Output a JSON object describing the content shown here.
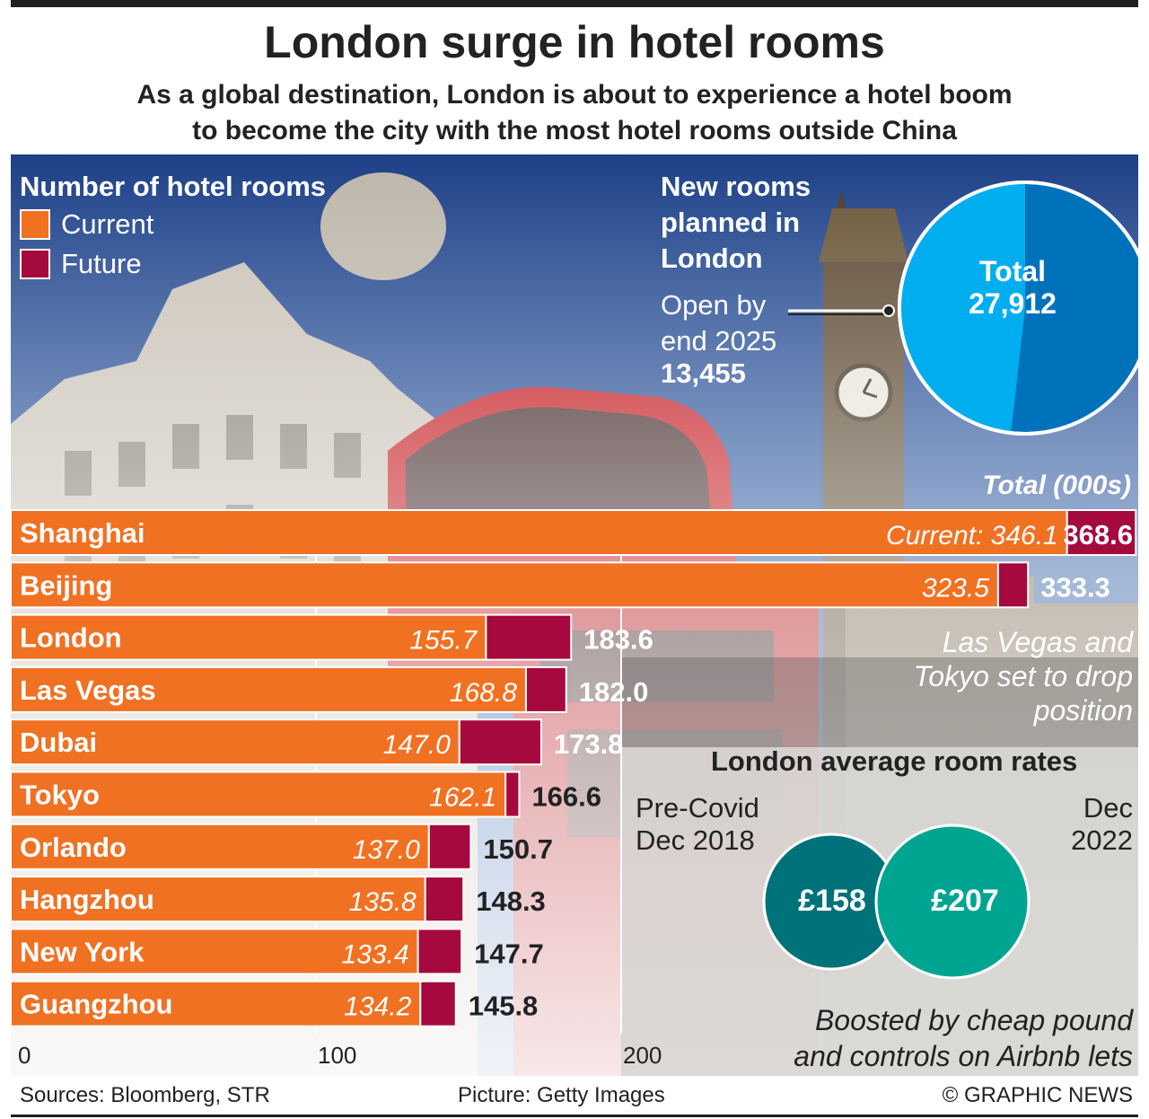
{
  "title": "London surge in hotel rooms",
  "subtitle_line1": "As a global destination, London is about to experience a hotel boom",
  "subtitle_line2": "to become the city with the most hotel rooms outside China",
  "legend": {
    "title": "Number of hotel rooms",
    "current": "Current",
    "future": "Future",
    "current_color": "#f07122",
    "future_color": "#a6093d"
  },
  "new_rooms": {
    "title_line1": "New rooms",
    "title_line2": "planned in",
    "title_line3": "London",
    "open_line1": "Open by",
    "open_line2": "end 2025",
    "open_value": "13,455",
    "total_label": "Total",
    "total_value": "27,912",
    "pie_fraction_open": 0.482
  },
  "chart_data": {
    "type": "bar",
    "orientation": "horizontal",
    "stacked": true,
    "header": "Total (000s)",
    "categories": [
      "Shanghai",
      "Beijing",
      "London",
      "Las Vegas",
      "Dubai",
      "Tokyo",
      "Orlando",
      "Hangzhou",
      "New York",
      "Guangzhou"
    ],
    "series": [
      {
        "name": "Current",
        "values": [
          346.1,
          323.5,
          155.7,
          168.8,
          147.0,
          162.1,
          137.0,
          135.8,
          133.4,
          134.2
        ]
      },
      {
        "name": "Future",
        "values": [
          22.5,
          9.8,
          27.9,
          13.2,
          26.8,
          4.5,
          13.7,
          12.5,
          14.3,
          11.6
        ]
      }
    ],
    "current_labels": [
      "Current: 346.1",
      "323.5",
      "155.7",
      "168.8",
      "147.0",
      "162.1",
      "137.0",
      "135.8",
      "133.4",
      "134.2"
    ],
    "total_labels": [
      "368.6",
      "333.3",
      "183.6",
      "182.0",
      "173.8",
      "166.6",
      "150.7",
      "148.3",
      "147.7",
      "145.8"
    ],
    "xticks": [
      "0",
      "100",
      "200"
    ],
    "xlim": [
      0,
      368.6
    ]
  },
  "note_line1": "Las Vegas and",
  "note_line2": "Tokyo set to drop",
  "note_line3": "position",
  "rates": {
    "title": "London average room rates",
    "pre_line1": "Pre-Covid",
    "pre_line2": "Dec 2018",
    "pre_value": "£158",
    "now_line1": "Dec",
    "now_line2": "2022",
    "now_value": "£207",
    "pre_color": "#00727a",
    "now_color": "#00a591"
  },
  "boosted_line1": "Boosted by cheap pound",
  "boosted_line2": "and controls on Airbnb lets",
  "footer": {
    "sources": "Sources: Bloomberg, STR",
    "picture": "Picture: Getty Images",
    "credit": "© GRAPHIC NEWS"
  }
}
